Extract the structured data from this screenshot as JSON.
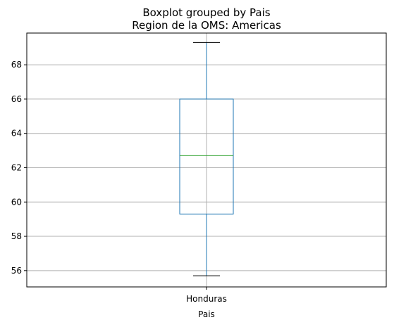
{
  "chart_data": {
    "type": "box",
    "suptitle": "Boxplot grouped by Pais",
    "title": "Region de la OMS: Americas",
    "xlabel": "Pais",
    "ylabel": "",
    "categories": [
      "Honduras"
    ],
    "boxes": [
      {
        "category": "Honduras",
        "min": 55.7,
        "q1": 59.3,
        "median": 62.7,
        "q3": 66.0,
        "max": 69.3
      }
    ],
    "ylim": [
      55.05,
      69.85
    ],
    "yticks": [
      56,
      58,
      60,
      62,
      64,
      66,
      68
    ],
    "grid": true,
    "colors": {
      "box": "#1f77b4",
      "median": "#2ca02c",
      "whisker": "#1f77b4",
      "cap": "#000000",
      "grid": "#b0b0b0"
    }
  }
}
